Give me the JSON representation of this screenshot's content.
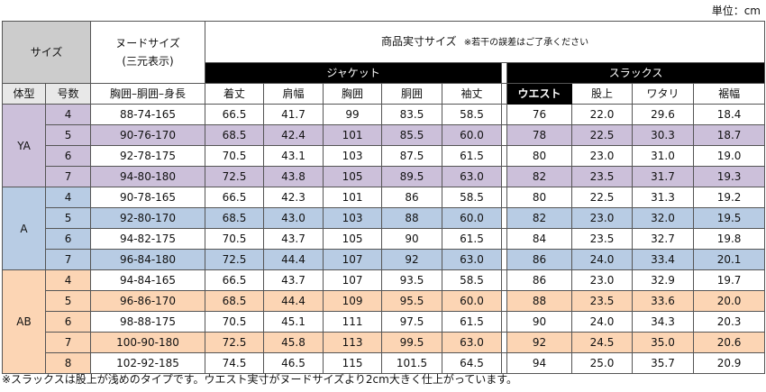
{
  "unit_label": "単位：cm",
  "header": {
    "size": "サイズ",
    "nude_size": "ヌードサイズ\n(三元表示)",
    "product_size": "商品実寸サイズ",
    "product_note": "※若干の誤差はご了承ください",
    "jacket": "ジャケット",
    "slacks": "スラックス"
  },
  "columns": {
    "body_type": "体型",
    "number": "号数",
    "nude": "胸囲–胴囲–身長",
    "jacket": [
      "着丈",
      "肩幅",
      "胸囲",
      "胴囲",
      "袖丈"
    ],
    "waist": "ウエスト",
    "slacks": [
      "股上",
      "ワタリ",
      "裾幅"
    ]
  },
  "groups": [
    {
      "type": "YA",
      "rows": [
        {
          "no": "4",
          "nude": "88-74-165",
          "jacket": [
            "66.5",
            "41.7",
            "99",
            "83.5",
            "58.5"
          ],
          "waist": "76",
          "slacks": [
            "22.0",
            "29.6",
            "18.4"
          ]
        },
        {
          "no": "5",
          "nude": "90-76-170",
          "jacket": [
            "68.5",
            "42.4",
            "101",
            "85.5",
            "60.0"
          ],
          "waist": "78",
          "slacks": [
            "22.5",
            "30.3",
            "18.7"
          ]
        },
        {
          "no": "6",
          "nude": "92-78-175",
          "jacket": [
            "70.5",
            "43.1",
            "103",
            "87.5",
            "61.5"
          ],
          "waist": "80",
          "slacks": [
            "23.0",
            "31.0",
            "19.0"
          ]
        },
        {
          "no": "7",
          "nude": "94-80-180",
          "jacket": [
            "72.5",
            "43.8",
            "105",
            "89.5",
            "63.0"
          ],
          "waist": "82",
          "slacks": [
            "23.5",
            "31.7",
            "19.3"
          ]
        }
      ]
    },
    {
      "type": "A",
      "rows": [
        {
          "no": "4",
          "nude": "90-78-165",
          "jacket": [
            "66.5",
            "42.3",
            "101",
            "86",
            "58.5"
          ],
          "waist": "80",
          "slacks": [
            "22.5",
            "31.3",
            "19.2"
          ]
        },
        {
          "no": "5",
          "nude": "92-80-170",
          "jacket": [
            "68.5",
            "43.0",
            "103",
            "88",
            "60.0"
          ],
          "waist": "82",
          "slacks": [
            "23.0",
            "32.0",
            "19.5"
          ]
        },
        {
          "no": "6",
          "nude": "94-82-175",
          "jacket": [
            "70.5",
            "43.7",
            "105",
            "90",
            "61.5"
          ],
          "waist": "84",
          "slacks": [
            "23.5",
            "32.7",
            "19.8"
          ]
        },
        {
          "no": "7",
          "nude": "96-84-180",
          "jacket": [
            "72.5",
            "44.4",
            "107",
            "92",
            "63.0"
          ],
          "waist": "86",
          "slacks": [
            "24.0",
            "33.4",
            "20.1"
          ]
        }
      ]
    },
    {
      "type": "AB",
      "rows": [
        {
          "no": "4",
          "nude": "94-84-165",
          "jacket": [
            "66.5",
            "43.7",
            "107",
            "93.5",
            "58.5"
          ],
          "waist": "86",
          "slacks": [
            "23.0",
            "32.9",
            "19.7"
          ]
        },
        {
          "no": "5",
          "nude": "96-86-170",
          "jacket": [
            "68.5",
            "44.4",
            "109",
            "95.5",
            "60.0"
          ],
          "waist": "88",
          "slacks": [
            "23.5",
            "33.6",
            "20.0"
          ]
        },
        {
          "no": "6",
          "nude": "98-88-175",
          "jacket": [
            "70.5",
            "45.1",
            "111",
            "97.5",
            "61.5"
          ],
          "waist": "90",
          "slacks": [
            "24.0",
            "34.3",
            "20.3"
          ]
        },
        {
          "no": "7",
          "nude": "100-90-180",
          "jacket": [
            "72.5",
            "45.8",
            "113",
            "99.5",
            "63.0"
          ],
          "waist": "92",
          "slacks": [
            "24.5",
            "35.0",
            "20.6"
          ]
        },
        {
          "no": "8",
          "nude": "102-92-185",
          "jacket": [
            "74.5",
            "46.5",
            "115",
            "101.5",
            "64.5"
          ],
          "waist": "94",
          "slacks": [
            "25.0",
            "35.7",
            "20.9"
          ]
        }
      ]
    }
  ],
  "footnote": "※スラックスは股上が浅めのタイプです。ウエスト実寸がヌードサイズより2cm大きく仕上がっています。",
  "colors": {
    "YA": "#ccc0da",
    "A": "#b8cce4",
    "AB": "#fcd5b4"
  }
}
